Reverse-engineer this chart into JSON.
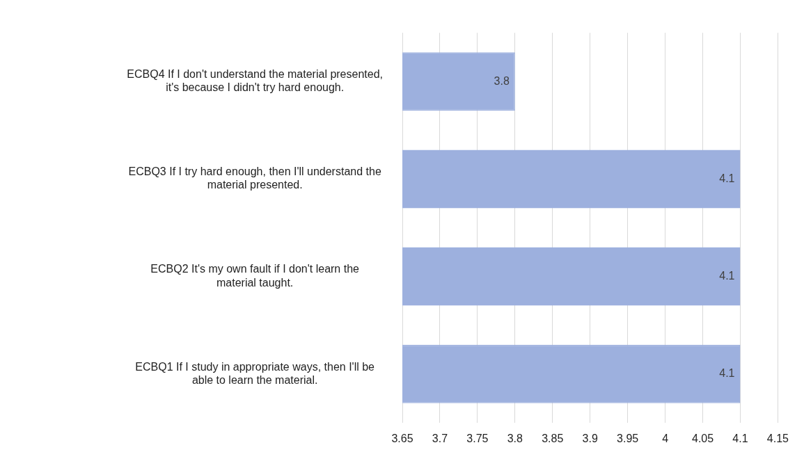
{
  "chart_data": {
    "type": "bar",
    "orientation": "horizontal",
    "categories": [
      "ECBQ4 If I don't understand the material presented, it's because I didn't try hard enough.",
      "ECBQ3 If I try hard enough, then I'll understand the material presented.",
      "ECBQ2 It's my own fault if I don't learn the material taught.",
      "ECBQ1 If I study in appropriate ways, then I'll be able to learn the material."
    ],
    "values": [
      3.8,
      4.1,
      4.1,
      4.1
    ],
    "color": "#9db0de",
    "xlim": [
      3.65,
      4.15
    ],
    "xticks": [
      3.65,
      3.7,
      3.75,
      3.8,
      3.85,
      3.9,
      3.95,
      4,
      4.05,
      4.1,
      4.15
    ],
    "grid": "x",
    "data_labels": true,
    "legend": false
  }
}
